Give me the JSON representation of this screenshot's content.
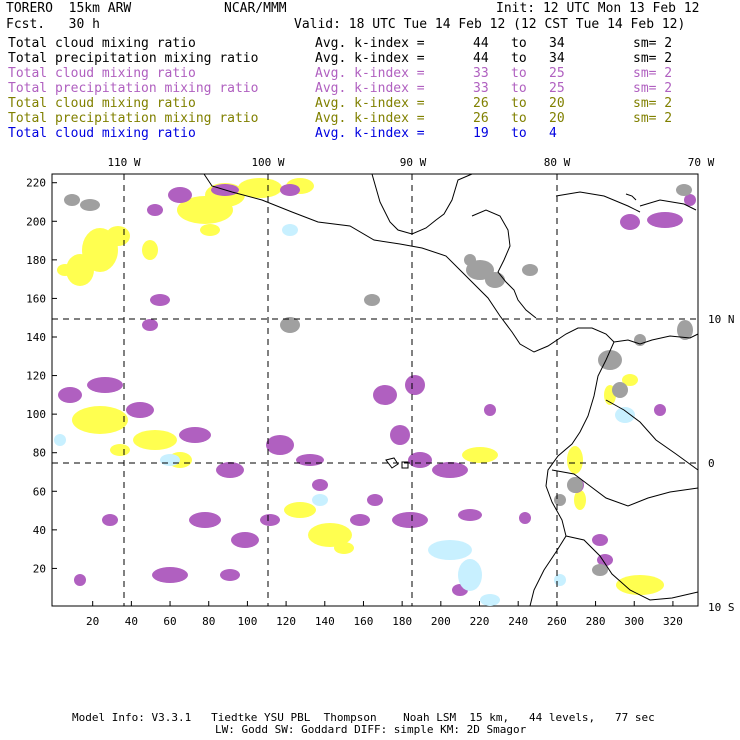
{
  "header": {
    "model": "TORERO  15km ARW",
    "org": "NCAR/MMM",
    "init": "Init: 12 UTC Mon 13 Feb 12",
    "fcst": "Fcst.   30 h",
    "valid": "Valid: 18 UTC Tue 14 Feb 12 (12 CST Tue 14 Feb 12)"
  },
  "legend": [
    {
      "field": "Total cloud mixing ratio",
      "kidx": "Avg. k-index =",
      "from": "44",
      "to_word": "to",
      "to": "34",
      "sm": "sm= 2",
      "color": "#000000"
    },
    {
      "field": "Total precipitation mixing ratio",
      "kidx": "Avg. k-index =",
      "from": "44",
      "to_word": "to",
      "to": "34",
      "sm": "sm= 2",
      "color": "#000000"
    },
    {
      "field": "Total cloud mixing ratio",
      "kidx": "Avg. k-index =",
      "from": "33",
      "to_word": "to",
      "to": "25",
      "sm": "sm= 2",
      "color": "#b060c0"
    },
    {
      "field": "Total precipitation mixing ratio",
      "kidx": "Avg. k-index =",
      "from": "33",
      "to_word": "to",
      "to": "25",
      "sm": "sm= 2",
      "color": "#b060c0"
    },
    {
      "field": "Total cloud mixing ratio",
      "kidx": "Avg. k-index =",
      "from": "26",
      "to_word": "to",
      "to": "20",
      "sm": "sm= 2",
      "color": "#808000"
    },
    {
      "field": "Total precipitation mixing ratio",
      "kidx": "Avg. k-index =",
      "from": "26",
      "to_word": "to",
      "to": "20",
      "sm": "sm= 2",
      "color": "#808000"
    },
    {
      "field": "Total cloud mixing ratio",
      "kidx": "Avg. k-index =",
      "from": "19",
      "to_word": "to",
      "to": "4",
      "sm": "",
      "color": "#0000e0"
    }
  ],
  "map": {
    "lon_labels": [
      "110 W",
      "100 W",
      "90 W",
      "80 W",
      "70 W"
    ],
    "lat_labels": [
      "10 N",
      "0",
      "10 S"
    ],
    "x_ticks": [
      "20",
      "40",
      "60",
      "80",
      "100",
      "120",
      "140",
      "160",
      "180",
      "200",
      "220",
      "240",
      "260",
      "280",
      "300",
      "320"
    ],
    "y_ticks": [
      "20",
      "40",
      "60",
      "80",
      "100",
      "120",
      "140",
      "160",
      "180",
      "200",
      "220"
    ],
    "colors": {
      "gray": "#a0a0a0",
      "purple": "#b060c0",
      "yellow": "#ffff50",
      "lightblue": "#c8f0ff"
    }
  },
  "footer": {
    "line1": "Model Info: V3.3.1   Tiedtke YSU PBL  Thompson    Noah LSM  15 km,   44 levels,   77 sec",
    "line2": "LW: Godd SW: Goddard DIFF: simple KM: 2D Smagor"
  }
}
